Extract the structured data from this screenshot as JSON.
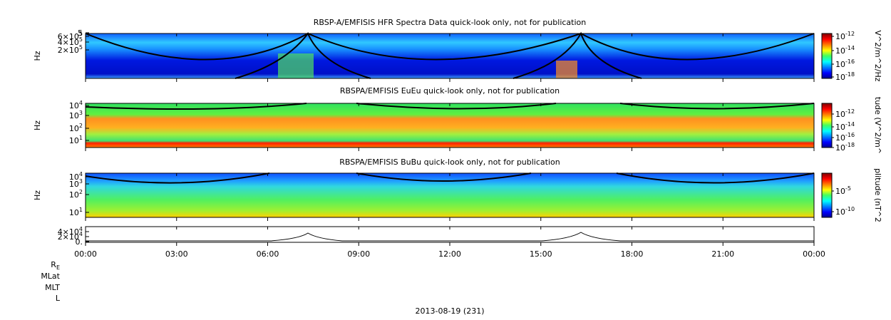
{
  "panels": [
    {
      "title": "RBSP-A/EMFISIS  HFR Spectra Data quick-look only, not for publication",
      "ylabel": "Hz",
      "yticks": [
        {
          "base": "5"
        },
        {
          "base": "6×10",
          "exp": "5"
        },
        {
          "base": "4×10",
          "exp": "5"
        },
        {
          "base": "2×10",
          "exp": "5"
        }
      ],
      "colorbar_label": "V^2/m^2/Hz",
      "colorbar_ticks": [
        {
          "base": "10",
          "exp": "-12"
        },
        {
          "base": "10",
          "exp": "-14"
        },
        {
          "base": "10",
          "exp": "-16"
        },
        {
          "base": "10",
          "exp": "-18"
        }
      ]
    },
    {
      "title": "RBSPA/EMFISIS  EuEu quick-look only, not for publication",
      "ylabel": "Hz",
      "yticks": [
        {
          "base": "10",
          "exp": "4"
        },
        {
          "base": "10",
          "exp": "3"
        },
        {
          "base": "10",
          "exp": "2"
        },
        {
          "base": "10",
          "exp": "1"
        }
      ],
      "colorbar_label": "tude (V^2/m^",
      "colorbar_ticks": [
        {
          "base": "10",
          "exp": "-12"
        },
        {
          "base": "10",
          "exp": "-14"
        },
        {
          "base": "10",
          "exp": "-16"
        },
        {
          "base": "10",
          "exp": "-18"
        }
      ]
    },
    {
      "title": "RBSPA/EMFISIS  BuBu quick-look only, not for publication",
      "ylabel": "Hz",
      "yticks": [
        {
          "base": "10",
          "exp": "4"
        },
        {
          "base": "10",
          "exp": "3"
        },
        {
          "base": "10",
          "exp": "2"
        },
        {
          "base": "10",
          "exp": "1"
        }
      ],
      "colorbar_label": "plitude (nT^2",
      "colorbar_ticks": [
        {
          "base": "10",
          "exp": "-5"
        },
        {
          "base": "10",
          "exp": "-10"
        }
      ]
    },
    {
      "yticks": [
        {
          "base": "4×10",
          "exp": "4"
        },
        {
          "base": "2×10",
          "exp": "4"
        },
        {
          "base": "0."
        }
      ]
    }
  ],
  "xticks": [
    "00:00",
    "03:00",
    "06:00",
    "09:00",
    "12:00",
    "15:00",
    "18:00",
    "21:00",
    "00:00"
  ],
  "ephemeris_labels": [
    {
      "base": "R",
      "sub": "E"
    },
    {
      "base": "MLat"
    },
    {
      "base": "MLT"
    },
    {
      "base": "L"
    }
  ],
  "date": "2013-08-19 (231)"
}
